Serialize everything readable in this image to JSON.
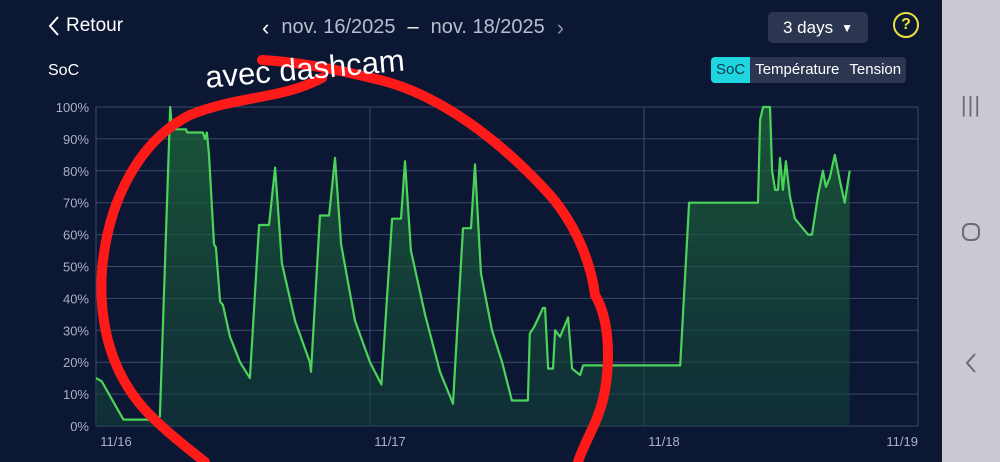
{
  "header": {
    "back_label": "Retour",
    "date_start": "nov. 16/2025",
    "date_separator": "–",
    "date_end": "nov. 18/2025",
    "period_select": "3 days",
    "help_label": "?"
  },
  "metric_label": "SoC",
  "tabs": [
    {
      "label": "SoC",
      "active": true
    },
    {
      "label": "Température",
      "active": false
    },
    {
      "label": "Tension",
      "active": false
    }
  ],
  "annotation": {
    "text": "avec dashcam",
    "color": "#ff1a1a"
  },
  "colors": {
    "line": "#4cd45a",
    "fill": "#1f6b3a",
    "grid": "#3a4a6a",
    "active_tab": "#1fd6e0",
    "help": "#e8e23a"
  },
  "chart_data": {
    "type": "area",
    "xlabel": "",
    "ylabel": "SoC",
    "xlim": [
      "2025-11-16 00:00",
      "2025-11-19 00:00"
    ],
    "ylim": [
      0,
      100
    ],
    "x_ticks": [
      "11/16",
      "11/17",
      "11/18",
      "11/19"
    ],
    "y_ticks": [
      "0%",
      "10%",
      "20%",
      "30%",
      "40%",
      "50%",
      "60%",
      "70%",
      "80%",
      "90%",
      "100%"
    ],
    "grid": true,
    "points": [
      [
        "2025-11-16 00:00",
        15
      ],
      [
        "2025-11-16 00:30",
        14
      ],
      [
        "2025-11-16 02:24",
        2
      ],
      [
        "2025-11-16 05:20",
        2
      ],
      [
        "2025-11-16 05:36",
        3
      ],
      [
        "2025-11-16 06:30",
        100
      ],
      [
        "2025-11-16 06:40",
        93
      ],
      [
        "2025-11-16 07:53",
        93
      ],
      [
        "2025-11-16 08:00",
        92
      ],
      [
        "2025-11-16 09:22",
        92
      ],
      [
        "2025-11-16 09:33",
        90
      ],
      [
        "2025-11-16 09:43",
        92
      ],
      [
        "2025-11-16 09:54",
        85
      ],
      [
        "2025-11-16 10:20",
        57
      ],
      [
        "2025-11-16 10:30",
        56
      ],
      [
        "2025-11-16 10:52",
        39
      ],
      [
        "2025-11-16 11:07",
        38
      ],
      [
        "2025-11-16 11:44",
        28
      ],
      [
        "2025-11-16 12:37",
        20
      ],
      [
        "2025-11-16 13:29",
        15
      ],
      [
        "2025-11-16 14:17",
        63
      ],
      [
        "2025-11-16 15:09",
        63
      ],
      [
        "2025-11-16 15:41",
        81
      ],
      [
        "2025-11-16 16:17",
        51
      ],
      [
        "2025-11-16 17:26",
        33
      ],
      [
        "2025-11-16 18:44",
        20
      ],
      [
        "2025-11-16 18:50",
        17
      ],
      [
        "2025-11-16 19:37",
        66
      ],
      [
        "2025-11-16 20:25",
        66
      ],
      [
        "2025-11-16 20:56",
        84
      ],
      [
        "2025-11-16 21:28",
        57
      ],
      [
        "2025-11-16 22:41",
        33
      ],
      [
        "2025-11-17 00:00",
        20
      ],
      [
        "2025-11-17 01:00",
        13
      ],
      [
        "2025-11-17 01:56",
        65
      ],
      [
        "2025-11-17 02:43",
        65
      ],
      [
        "2025-11-17 03:04",
        83
      ],
      [
        "2025-11-17 03:35",
        55
      ],
      [
        "2025-11-17 04:49",
        35
      ],
      [
        "2025-11-17 06:08",
        17
      ],
      [
        "2025-11-17 07:16",
        7
      ],
      [
        "2025-11-17 08:09",
        62
      ],
      [
        "2025-11-17 08:51",
        62
      ],
      [
        "2025-11-17 09:12",
        82
      ],
      [
        "2025-11-17 09:43",
        48
      ],
      [
        "2025-11-17 10:41",
        30
      ],
      [
        "2025-11-17 11:34",
        20
      ],
      [
        "2025-11-17 12:26",
        8
      ],
      [
        "2025-11-17 13:50",
        8
      ],
      [
        "2025-11-17 14:00",
        29
      ],
      [
        "2025-11-17 14:22",
        31
      ],
      [
        "2025-11-17 15:09",
        37
      ],
      [
        "2025-11-17 15:20",
        37
      ],
      [
        "2025-11-17 15:36",
        18
      ],
      [
        "2025-11-17 16:02",
        18
      ],
      [
        "2025-11-17 16:13",
        30
      ],
      [
        "2025-11-17 16:39",
        28
      ],
      [
        "2025-11-17 17:21",
        34
      ],
      [
        "2025-11-17 17:42",
        18
      ],
      [
        "2025-11-17 18:24",
        16
      ],
      [
        "2025-11-17 18:40",
        19
      ],
      [
        "2025-11-18 03:10",
        19
      ],
      [
        "2025-11-18 03:57",
        70
      ],
      [
        "2025-11-18 09:59",
        70
      ],
      [
        "2025-11-18 10:10",
        96
      ],
      [
        "2025-11-18 10:26",
        100
      ],
      [
        "2025-11-18 11:02",
        100
      ],
      [
        "2025-11-18 11:13",
        80
      ],
      [
        "2025-11-18 11:29",
        74
      ],
      [
        "2025-11-18 11:44",
        74
      ],
      [
        "2025-11-18 11:55",
        84
      ],
      [
        "2025-11-18 12:10",
        74
      ],
      [
        "2025-11-18 12:26",
        83
      ],
      [
        "2025-11-18 12:47",
        72
      ],
      [
        "2025-11-18 13:13",
        65
      ],
      [
        "2025-11-18 14:22",
        60
      ],
      [
        "2025-11-18 14:43",
        60
      ],
      [
        "2025-11-18 15:14",
        72
      ],
      [
        "2025-11-18 15:40",
        80
      ],
      [
        "2025-11-18 15:56",
        75
      ],
      [
        "2025-11-18 16:17",
        78
      ],
      [
        "2025-11-18 16:43",
        85
      ],
      [
        "2025-11-18 17:09",
        77
      ],
      [
        "2025-11-18 17:35",
        70
      ],
      [
        "2025-11-18 18:01",
        80
      ]
    ]
  }
}
